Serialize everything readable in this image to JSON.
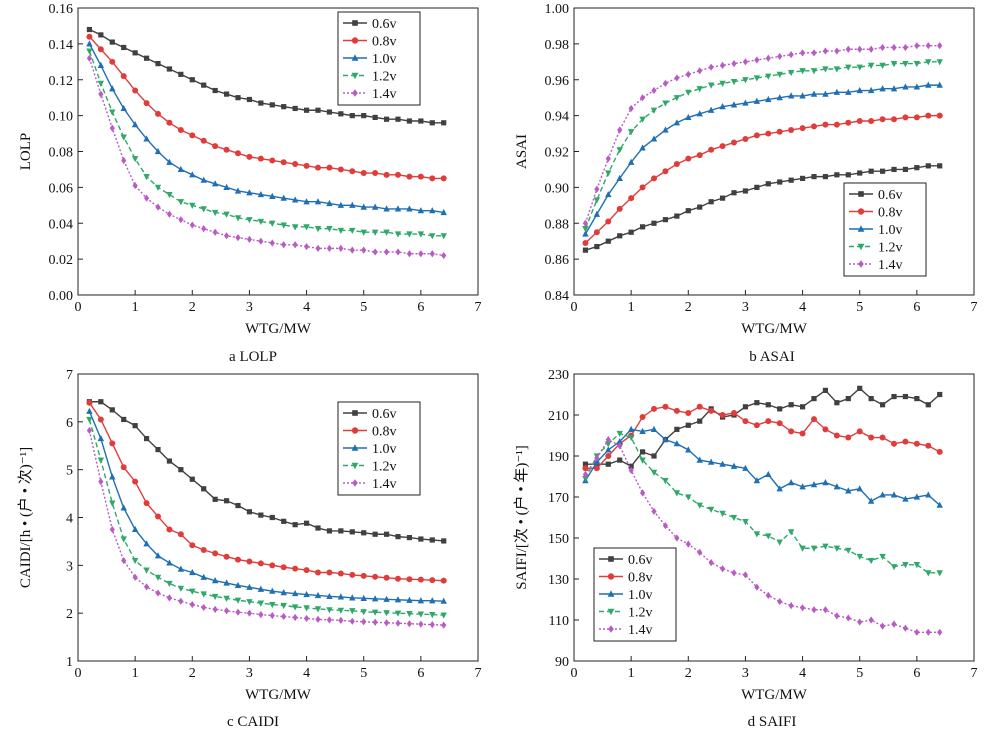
{
  "figure": {
    "captions": [
      "a  LOLP",
      "b  ASAI",
      "c  CAIDI",
      "d  SAIFI"
    ]
  },
  "chart_data": [
    {
      "id": "lolp",
      "type": "line",
      "caption": "a  LOLP",
      "xlabel": "WTG/MW",
      "ylabel": "LOLP",
      "xlim": [
        0,
        7
      ],
      "ylim": [
        0,
        0.16
      ],
      "xticks": [
        0,
        1,
        2,
        3,
        4,
        5,
        6,
        7
      ],
      "yticks": [
        "0.00",
        "0.02",
        "0.04",
        "0.06",
        "0.08",
        "0.10",
        "0.12",
        "0.14",
        "0.16"
      ],
      "legend_position": "top-right",
      "grid": false,
      "x": [
        0.2,
        0.4,
        0.6,
        0.8,
        1.0,
        1.2,
        1.4,
        1.6,
        1.8,
        2.0,
        2.2,
        2.4,
        2.6,
        2.8,
        3.0,
        3.2,
        3.4,
        3.6,
        3.8,
        4.0,
        4.2,
        4.4,
        4.6,
        4.8,
        5.0,
        5.2,
        5.4,
        5.6,
        5.8,
        6.0,
        6.2,
        6.4
      ],
      "series": [
        {
          "name": "0.6v",
          "color": "#404040",
          "marker": "square",
          "dash": "solid",
          "values": [
            0.148,
            0.145,
            0.141,
            0.138,
            0.135,
            0.132,
            0.129,
            0.126,
            0.123,
            0.12,
            0.117,
            0.114,
            0.112,
            0.11,
            0.109,
            0.107,
            0.106,
            0.105,
            0.104,
            0.103,
            0.103,
            0.102,
            0.101,
            0.1,
            0.1,
            0.099,
            0.098,
            0.098,
            0.097,
            0.097,
            0.096,
            0.096
          ]
        },
        {
          "name": "0.8v",
          "color": "#e03c3c",
          "marker": "circle",
          "dash": "solid",
          "values": [
            0.144,
            0.137,
            0.13,
            0.122,
            0.114,
            0.107,
            0.101,
            0.096,
            0.092,
            0.089,
            0.086,
            0.083,
            0.081,
            0.079,
            0.077,
            0.076,
            0.075,
            0.074,
            0.073,
            0.072,
            0.071,
            0.071,
            0.07,
            0.069,
            0.068,
            0.068,
            0.067,
            0.067,
            0.066,
            0.066,
            0.065,
            0.065
          ]
        },
        {
          "name": "1.0v",
          "color": "#1f6fb5",
          "marker": "triangle",
          "dash": "solid",
          "values": [
            0.14,
            0.128,
            0.115,
            0.104,
            0.095,
            0.087,
            0.08,
            0.074,
            0.07,
            0.067,
            0.064,
            0.062,
            0.06,
            0.058,
            0.057,
            0.056,
            0.055,
            0.054,
            0.053,
            0.052,
            0.052,
            0.051,
            0.05,
            0.05,
            0.049,
            0.049,
            0.048,
            0.048,
            0.048,
            0.047,
            0.047,
            0.046
          ]
        },
        {
          "name": "1.2v",
          "color": "#2fa86a",
          "marker": "triangle-down",
          "dash": "dashed",
          "values": [
            0.136,
            0.118,
            0.102,
            0.088,
            0.076,
            0.066,
            0.06,
            0.056,
            0.052,
            0.05,
            0.048,
            0.046,
            0.045,
            0.043,
            0.042,
            0.041,
            0.04,
            0.039,
            0.038,
            0.038,
            0.037,
            0.037,
            0.036,
            0.036,
            0.035,
            0.035,
            0.035,
            0.034,
            0.034,
            0.034,
            0.033,
            0.033
          ]
        },
        {
          "name": "1.4v",
          "color": "#b85cc4",
          "marker": "diamond",
          "dash": "dotted",
          "values": [
            0.132,
            0.112,
            0.093,
            0.075,
            0.061,
            0.054,
            0.049,
            0.045,
            0.042,
            0.039,
            0.037,
            0.035,
            0.033,
            0.032,
            0.031,
            0.03,
            0.029,
            0.028,
            0.028,
            0.027,
            0.026,
            0.026,
            0.026,
            0.025,
            0.025,
            0.024,
            0.024,
            0.024,
            0.023,
            0.023,
            0.023,
            0.022
          ]
        }
      ]
    },
    {
      "id": "asai",
      "type": "line",
      "caption": "b  ASAI",
      "xlabel": "WTG/MW",
      "ylabel": "ASAI",
      "xlim": [
        0,
        7
      ],
      "ylim": [
        0.84,
        1.0
      ],
      "xticks": [
        0,
        1,
        2,
        3,
        4,
        5,
        6,
        7
      ],
      "yticks": [
        "0.84",
        "0.86",
        "0.88",
        "0.90",
        "0.92",
        "0.94",
        "0.96",
        "0.98",
        "1.00"
      ],
      "legend_position": "bottom-right",
      "grid": false,
      "x": [
        0.2,
        0.4,
        0.6,
        0.8,
        1.0,
        1.2,
        1.4,
        1.6,
        1.8,
        2.0,
        2.2,
        2.4,
        2.6,
        2.8,
        3.0,
        3.2,
        3.4,
        3.6,
        3.8,
        4.0,
        4.2,
        4.4,
        4.6,
        4.8,
        5.0,
        5.2,
        5.4,
        5.6,
        5.8,
        6.0,
        6.2,
        6.4
      ],
      "series": [
        {
          "name": "0.6v",
          "color": "#404040",
          "marker": "square",
          "dash": "solid",
          "values": [
            0.865,
            0.867,
            0.87,
            0.873,
            0.875,
            0.878,
            0.88,
            0.882,
            0.884,
            0.887,
            0.889,
            0.892,
            0.894,
            0.897,
            0.898,
            0.9,
            0.902,
            0.903,
            0.904,
            0.905,
            0.906,
            0.906,
            0.907,
            0.907,
            0.908,
            0.909,
            0.909,
            0.91,
            0.91,
            0.911,
            0.912,
            0.912
          ]
        },
        {
          "name": "0.8v",
          "color": "#e03c3c",
          "marker": "circle",
          "dash": "solid",
          "values": [
            0.869,
            0.875,
            0.881,
            0.888,
            0.894,
            0.9,
            0.905,
            0.909,
            0.913,
            0.916,
            0.918,
            0.921,
            0.923,
            0.925,
            0.927,
            0.929,
            0.93,
            0.931,
            0.932,
            0.933,
            0.934,
            0.935,
            0.935,
            0.936,
            0.937,
            0.937,
            0.938,
            0.938,
            0.939,
            0.939,
            0.94,
            0.94
          ]
        },
        {
          "name": "1.0v",
          "color": "#1f6fb5",
          "marker": "triangle",
          "dash": "solid",
          "values": [
            0.874,
            0.885,
            0.896,
            0.905,
            0.914,
            0.922,
            0.927,
            0.932,
            0.936,
            0.939,
            0.941,
            0.943,
            0.945,
            0.946,
            0.947,
            0.948,
            0.949,
            0.95,
            0.951,
            0.951,
            0.952,
            0.952,
            0.953,
            0.953,
            0.954,
            0.954,
            0.955,
            0.955,
            0.956,
            0.956,
            0.957,
            0.957
          ]
        },
        {
          "name": "1.2v",
          "color": "#2fa86a",
          "marker": "triangle-down",
          "dash": "dashed",
          "values": [
            0.877,
            0.893,
            0.908,
            0.921,
            0.931,
            0.938,
            0.943,
            0.947,
            0.95,
            0.953,
            0.955,
            0.957,
            0.958,
            0.959,
            0.96,
            0.961,
            0.962,
            0.963,
            0.964,
            0.965,
            0.965,
            0.966,
            0.966,
            0.967,
            0.967,
            0.968,
            0.968,
            0.969,
            0.969,
            0.969,
            0.97,
            0.97
          ]
        },
        {
          "name": "1.4v",
          "color": "#b85cc4",
          "marker": "diamond",
          "dash": "dotted",
          "values": [
            0.88,
            0.899,
            0.916,
            0.932,
            0.944,
            0.95,
            0.954,
            0.958,
            0.961,
            0.963,
            0.965,
            0.967,
            0.968,
            0.969,
            0.97,
            0.971,
            0.972,
            0.973,
            0.974,
            0.975,
            0.975,
            0.976,
            0.976,
            0.977,
            0.977,
            0.977,
            0.978,
            0.978,
            0.978,
            0.979,
            0.979,
            0.979
          ]
        }
      ]
    },
    {
      "id": "caidi",
      "type": "line",
      "caption": "c  CAIDI",
      "xlabel": "WTG/MW",
      "ylabel": "CAIDI/[h • (户 • 次)⁻¹]",
      "xlim": [
        0,
        7
      ],
      "ylim": [
        1,
        7
      ],
      "xticks": [
        0,
        1,
        2,
        3,
        4,
        5,
        6,
        7
      ],
      "yticks": [
        "1",
        "2",
        "3",
        "4",
        "5",
        "6",
        "7"
      ],
      "legend_position": "top-right",
      "grid": false,
      "x": [
        0.2,
        0.4,
        0.6,
        0.8,
        1.0,
        1.2,
        1.4,
        1.6,
        1.8,
        2.0,
        2.2,
        2.4,
        2.6,
        2.8,
        3.0,
        3.2,
        3.4,
        3.6,
        3.8,
        4.0,
        4.2,
        4.4,
        4.6,
        4.8,
        5.0,
        5.2,
        5.4,
        5.6,
        5.8,
        6.0,
        6.2,
        6.4
      ],
      "series": [
        {
          "name": "0.6v",
          "color": "#404040",
          "marker": "square",
          "dash": "solid",
          "values": [
            6.42,
            6.42,
            6.25,
            6.05,
            5.92,
            5.65,
            5.42,
            5.18,
            5.0,
            4.8,
            4.6,
            4.38,
            4.35,
            4.25,
            4.12,
            4.05,
            4.0,
            3.92,
            3.85,
            3.88,
            3.78,
            3.72,
            3.72,
            3.7,
            3.68,
            3.65,
            3.65,
            3.6,
            3.58,
            3.55,
            3.53,
            3.51
          ]
        },
        {
          "name": "0.8v",
          "color": "#e03c3c",
          "marker": "circle",
          "dash": "solid",
          "values": [
            6.4,
            6.05,
            5.55,
            5.05,
            4.75,
            4.3,
            4.02,
            3.75,
            3.65,
            3.42,
            3.32,
            3.25,
            3.18,
            3.12,
            3.08,
            3.04,
            3.0,
            2.96,
            2.93,
            2.9,
            2.85,
            2.85,
            2.83,
            2.8,
            2.78,
            2.76,
            2.74,
            2.72,
            2.71,
            2.7,
            2.69,
            2.68
          ]
        },
        {
          "name": "1.0v",
          "color": "#1f6fb5",
          "marker": "triangle",
          "dash": "solid",
          "values": [
            6.22,
            5.65,
            4.85,
            4.2,
            3.75,
            3.45,
            3.2,
            3.05,
            2.92,
            2.85,
            2.75,
            2.68,
            2.63,
            2.58,
            2.54,
            2.5,
            2.46,
            2.43,
            2.41,
            2.39,
            2.37,
            2.35,
            2.34,
            2.32,
            2.31,
            2.3,
            2.29,
            2.28,
            2.27,
            2.26,
            2.26,
            2.25
          ]
        },
        {
          "name": "1.2v",
          "color": "#2fa86a",
          "marker": "triangle-down",
          "dash": "dashed",
          "values": [
            6.05,
            5.2,
            4.3,
            3.55,
            3.1,
            2.9,
            2.75,
            2.62,
            2.52,
            2.46,
            2.4,
            2.35,
            2.31,
            2.27,
            2.24,
            2.21,
            2.18,
            2.16,
            2.13,
            2.11,
            2.09,
            2.07,
            2.06,
            2.05,
            2.03,
            2.02,
            2.01,
            2.0,
            1.99,
            1.98,
            1.97,
            1.96
          ]
        },
        {
          "name": "1.4v",
          "color": "#b85cc4",
          "marker": "diamond",
          "dash": "dotted",
          "values": [
            5.82,
            4.75,
            3.75,
            3.1,
            2.75,
            2.55,
            2.42,
            2.32,
            2.25,
            2.18,
            2.12,
            2.08,
            2.05,
            2.02,
            2.0,
            1.97,
            1.95,
            1.93,
            1.91,
            1.89,
            1.87,
            1.86,
            1.85,
            1.83,
            1.82,
            1.81,
            1.8,
            1.79,
            1.78,
            1.77,
            1.76,
            1.75
          ]
        }
      ]
    },
    {
      "id": "saifi",
      "type": "line",
      "caption": "d  SAIFI",
      "xlabel": "WTG/MW",
      "ylabel": "SAIFI/[次 • (户 • 年)⁻¹]",
      "xlim": [
        0,
        7
      ],
      "ylim": [
        90,
        230
      ],
      "xticks": [
        0,
        1,
        2,
        3,
        4,
        5,
        6,
        7
      ],
      "yticks": [
        "90",
        "110",
        "130",
        "150",
        "170",
        "190",
        "210",
        "230"
      ],
      "legend_position": "bottom-left",
      "grid": false,
      "x": [
        0.2,
        0.4,
        0.6,
        0.8,
        1.0,
        1.2,
        1.4,
        1.6,
        1.8,
        2.0,
        2.2,
        2.4,
        2.6,
        2.8,
        3.0,
        3.2,
        3.4,
        3.6,
        3.8,
        4.0,
        4.2,
        4.4,
        4.6,
        4.8,
        5.0,
        5.2,
        5.4,
        5.6,
        5.8,
        6.0,
        6.2,
        6.4
      ],
      "series": [
        {
          "name": "0.6v",
          "color": "#404040",
          "marker": "square",
          "dash": "solid",
          "values": [
            186,
            186,
            186,
            188,
            185,
            192,
            190,
            198,
            203,
            205,
            207,
            213,
            209,
            210,
            214,
            216,
            215,
            213,
            215,
            214,
            218,
            222,
            216,
            218,
            223,
            218,
            215,
            219,
            219,
            218,
            215,
            220
          ]
        },
        {
          "name": "0.8v",
          "color": "#e03c3c",
          "marker": "circle",
          "dash": "solid",
          "values": [
            184,
            184,
            190,
            196,
            200,
            209,
            213,
            214,
            212,
            211,
            214,
            212,
            210,
            211,
            207,
            205,
            207,
            206,
            202,
            201,
            208,
            203,
            200,
            199,
            202,
            199,
            199,
            196,
            197,
            196,
            195,
            192
          ]
        },
        {
          "name": "1.0v",
          "color": "#1f6fb5",
          "marker": "triangle",
          "dash": "solid",
          "values": [
            178,
            187,
            193,
            197,
            203,
            202,
            203,
            198,
            196,
            193,
            188,
            187,
            186,
            185,
            184,
            178,
            181,
            174,
            177,
            175,
            176,
            177,
            175,
            173,
            174,
            168,
            171,
            171,
            169,
            170,
            171,
            166
          ]
        },
        {
          "name": "1.2v",
          "color": "#2fa86a",
          "marker": "triangle-down",
          "dash": "dashed",
          "values": [
            179,
            190,
            196,
            201,
            199,
            188,
            182,
            178,
            172,
            170,
            166,
            164,
            162,
            160,
            158,
            152,
            151,
            148,
            153,
            145,
            145,
            146,
            145,
            144,
            141,
            139,
            141,
            136,
            137,
            137,
            133,
            133
          ]
        },
        {
          "name": "1.4v",
          "color": "#b85cc4",
          "marker": "diamond",
          "dash": "dotted",
          "values": [
            181,
            189,
            198,
            195,
            183,
            172,
            163,
            156,
            150,
            147,
            143,
            138,
            135,
            133,
            132,
            126,
            122,
            119,
            117,
            116,
            115,
            115,
            112,
            111,
            109,
            110,
            107,
            108,
            106,
            104,
            104,
            104
          ]
        }
      ]
    }
  ]
}
